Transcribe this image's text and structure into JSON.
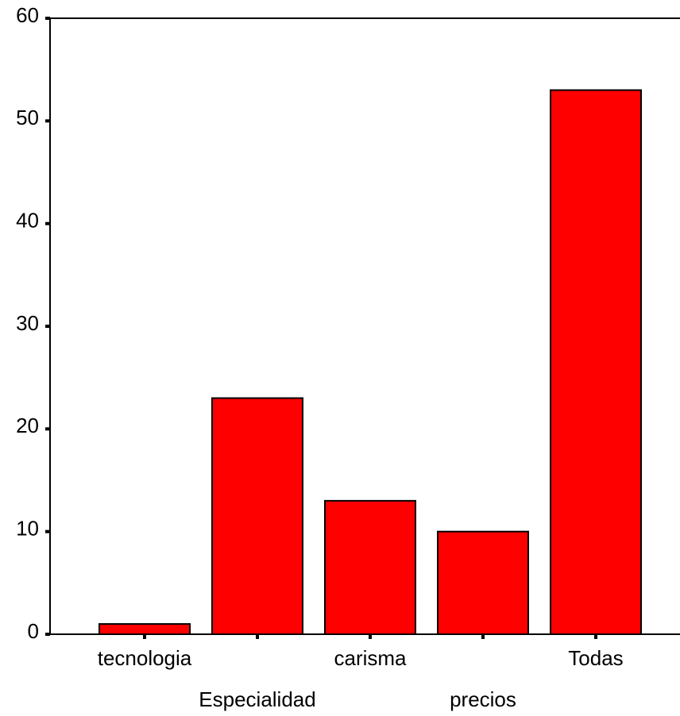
{
  "chart_data": {
    "type": "bar",
    "title": "",
    "xlabel": "",
    "ylabel": "",
    "categories": [
      "tecnologia",
      "Especialidad",
      "carisma",
      "precios",
      "Todas"
    ],
    "values": [
      1,
      23,
      13,
      10,
      53
    ],
    "ylim": [
      0,
      60
    ],
    "yticks": [
      0,
      10,
      20,
      30,
      40,
      50,
      60
    ],
    "label_rows": [
      0,
      1,
      0,
      1,
      0
    ],
    "bar_color": "#ff0000",
    "grid": false,
    "legend": "none"
  }
}
